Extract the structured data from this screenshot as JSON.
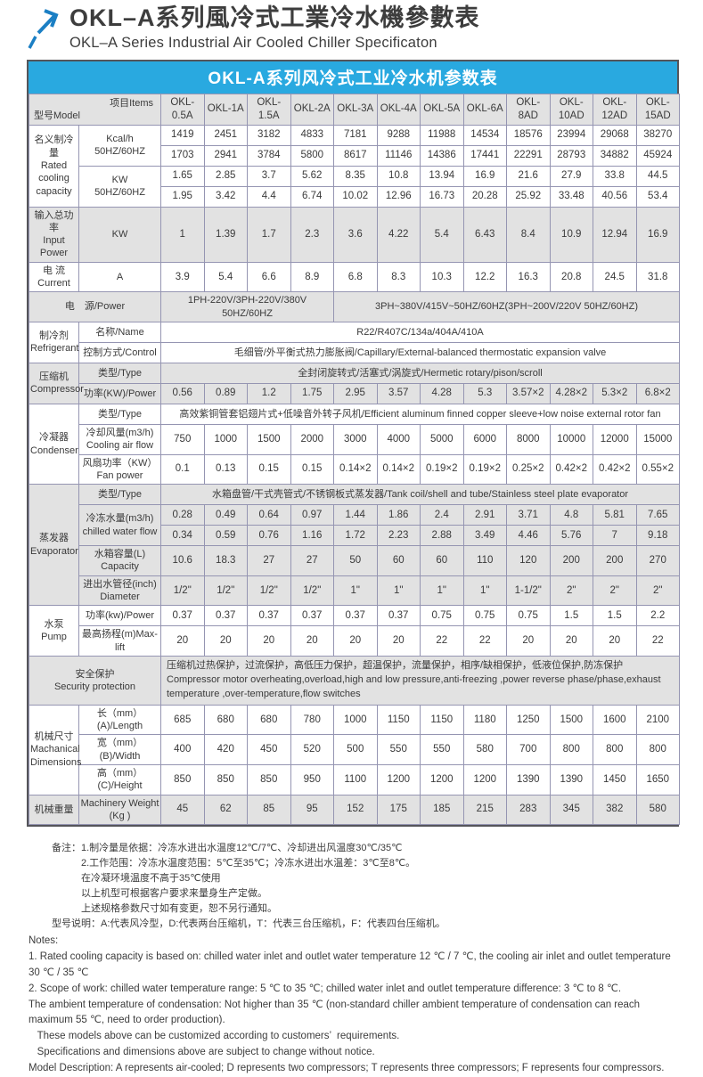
{
  "page": {
    "logo_icon": "arrow-up-right-icon",
    "title_zh": "OKL–A系列風冷式工業冷水機參數表",
    "title_en": "OKL–A Series Industrial Air Cooled Chiller Specificaton",
    "accent_blue": "#29a9e0",
    "logo_blue": "#1b7fc4",
    "shade_gray": "#e2e2e2"
  },
  "table": {
    "title": "OKL-A系列风冷式工业冷水机参数表",
    "header": {
      "model_label": "型号Model",
      "items_label": "项目Items",
      "models": [
        "OKL-0.5A",
        "OKL-1A",
        "OKL-1.5A",
        "OKL-2A",
        "OKL-3A",
        "OKL-4A",
        "OKL-5A",
        "OKL-6A",
        "OKL-8AD",
        "OKL-10AD",
        "OKL-12AD",
        "OKL-15AD"
      ]
    },
    "rows": [
      {
        "shade": false,
        "cells": [
          {
            "t": "名义制冷量\nRated\ncooling\ncapacity",
            "rs": 4,
            "cl": "grp",
            "n": "group-label-rated-cooling-capacity"
          },
          {
            "t": "Kcal/h\n50HZ/60HZ",
            "rs": 2,
            "cl": "item",
            "n": "item-label-kcal"
          },
          "1419",
          "2451",
          "3182",
          "4833",
          "7181",
          "9288",
          "11988",
          "14534",
          "18576",
          "23994",
          "29068",
          "38270"
        ]
      },
      {
        "shade": false,
        "cells": [
          "1703",
          "2941",
          "3784",
          "5800",
          "8617",
          "11146",
          "14386",
          "17441",
          "22291",
          "28793",
          "34882",
          "45924"
        ]
      },
      {
        "shade": false,
        "cells": [
          {
            "t": "KW\n50HZ/60HZ",
            "rs": 2,
            "cl": "item",
            "n": "item-label-kw"
          },
          "1.65",
          "2.85",
          "3.7",
          "5.62",
          "8.35",
          "10.8",
          "13.94",
          "16.9",
          "21.6",
          "27.9",
          "33.8",
          "44.5"
        ]
      },
      {
        "shade": false,
        "cells": [
          "1.95",
          "3.42",
          "4.4",
          "6.74",
          "10.02",
          "12.96",
          "16.73",
          "20.28",
          "25.92",
          "33.48",
          "40.56",
          "53.4"
        ]
      },
      {
        "shade": true,
        "cells": [
          {
            "t": "输入总功率\nInput Power",
            "cl": "grp",
            "n": "group-label-input-power"
          },
          {
            "t": "KW",
            "cl": "item",
            "n": "item-label-kw-unit"
          },
          "1",
          "1.39",
          "1.7",
          "2.3",
          "3.6",
          "4.22",
          "5.4",
          "6.43",
          "8.4",
          "10.9",
          "12.94",
          "16.9"
        ]
      },
      {
        "shade": false,
        "cells": [
          {
            "t": "电 流\nCurrent",
            "cl": "grp",
            "n": "group-label-current"
          },
          {
            "t": "A",
            "cl": "item",
            "n": "item-label-a-unit"
          },
          "3.9",
          "5.4",
          "6.6",
          "8.9",
          "6.8",
          "8.3",
          "10.3",
          "12.2",
          "16.3",
          "20.8",
          "24.5",
          "31.8"
        ]
      },
      {
        "shade": true,
        "cells": [
          {
            "t": "电　源/Power",
            "cs": 2,
            "cl": "grp",
            "n": "group-label-power-supply"
          },
          {
            "t": "1PH-220V/3PH-220V/380V 50HZ/60HZ",
            "cs": 4,
            "cl": "txt",
            "n": "power-supply-single"
          },
          {
            "t": "3PH~380V/415V~50HZ/60HZ(3PH~200V/220V  50HZ/60HZ)",
            "cs": 8,
            "cl": "txt",
            "n": "power-supply-three"
          }
        ]
      },
      {
        "shade": false,
        "cells": [
          {
            "t": "制冷剂\nRefrigerant",
            "rs": 2,
            "cl": "grp",
            "n": "group-label-refrigerant"
          },
          {
            "t": "名称/Name",
            "cl": "item",
            "n": "item-label-name"
          },
          {
            "t": "R22/R407C/134a/404A/410A",
            "cs": 12,
            "cl": "txt",
            "n": "refrigerant-name"
          }
        ]
      },
      {
        "shade": false,
        "cells": [
          {
            "t": "控制方式/Control",
            "cl": "item",
            "n": "item-label-control"
          },
          {
            "t": "毛细管/外平衡式热力膨胀阀/Capillary/External-balanced thermostatic expansion valve",
            "cs": 12,
            "cl": "txt",
            "n": "refrigerant-control"
          }
        ]
      },
      {
        "shade": true,
        "cells": [
          {
            "t": "压缩机\nCompressor",
            "rs": 2,
            "cl": "grp",
            "n": "group-label-compressor"
          },
          {
            "t": "类型/Type",
            "cl": "item",
            "n": "item-label-type"
          },
          {
            "t": "全封闭旋转式/活塞式/涡旋式/Hermetic rotary/pison/scroll",
            "cs": 12,
            "cl": "txt",
            "n": "compressor-type"
          }
        ]
      },
      {
        "shade": true,
        "cells": [
          {
            "t": "功率(KW)/Power",
            "cl": "item",
            "n": "item-label-compressor-power"
          },
          "0.56",
          "0.89",
          "1.2",
          "1.75",
          "2.95",
          "3.57",
          "4.28",
          "5.3",
          "3.57×2",
          "4.28×2",
          "5.3×2",
          "6.8×2"
        ]
      },
      {
        "shade": false,
        "cells": [
          {
            "t": "冷凝器\nCondenser",
            "rs": 3,
            "cl": "grp",
            "n": "group-label-condenser"
          },
          {
            "t": "类型/Type",
            "cl": "item",
            "n": "item-label-type"
          },
          {
            "t": "高效紫铜管套铝翅片式+低噪音外转子风机/Efficient aluminum finned copper sleeve+low noise external rotor fan",
            "cs": 12,
            "cl": "txt",
            "n": "condenser-type"
          }
        ]
      },
      {
        "shade": false,
        "cells": [
          {
            "t": "冷却风量(m3/h)\nCooling air flow",
            "cl": "item",
            "n": "item-label-cooling-air-flow"
          },
          "750",
          "1000",
          "1500",
          "2000",
          "3000",
          "4000",
          "5000",
          "6000",
          "8000",
          "10000",
          "12000",
          "15000"
        ]
      },
      {
        "shade": false,
        "cells": [
          {
            "t": "风扇功率（KW）\nFan power",
            "cl": "item",
            "n": "item-label-fan-power"
          },
          "0.1",
          "0.13",
          "0.15",
          "0.15",
          "0.14×2",
          "0.14×2",
          "0.19×2",
          "0.19×2",
          "0.25×2",
          "0.42×2",
          "0.42×2",
          "0.55×2"
        ]
      },
      {
        "shade": true,
        "cells": [
          {
            "t": "蒸发器\nEvaporator",
            "rs": 5,
            "cl": "grp",
            "n": "group-label-evaporator"
          },
          {
            "t": "类型/Type",
            "cl": "item",
            "n": "item-label-type"
          },
          {
            "t": "水箱盘管/干式壳管式/不锈钢板式蒸发器/Tank coil/shell and tube/Stainless steel plate evaporator",
            "cs": 12,
            "cl": "txt",
            "n": "evaporator-type"
          }
        ]
      },
      {
        "shade": true,
        "cells": [
          {
            "t": "冷冻水量(m3/h)\nchilled water flow",
            "rs": 2,
            "cl": "item",
            "n": "item-label-chilled-water-flow"
          },
          "0.28",
          "0.49",
          "0.64",
          "0.97",
          "1.44",
          "1.86",
          "2.4",
          "2.91",
          "3.71",
          "4.8",
          "5.81",
          "7.65"
        ]
      },
      {
        "shade": true,
        "cells": [
          "0.34",
          "0.59",
          "0.76",
          "1.16",
          "1.72",
          "2.23",
          "2.88",
          "3.49",
          "4.46",
          "5.76",
          "7",
          "9.18"
        ]
      },
      {
        "shade": true,
        "cells": [
          {
            "t": "水箱容量(L)\nCapacity",
            "cl": "item",
            "n": "item-label-tank-capacity"
          },
          "10.6",
          "18.3",
          "27",
          "27",
          "50",
          "60",
          "60",
          "110",
          "120",
          "200",
          "200",
          "270"
        ]
      },
      {
        "shade": true,
        "cells": [
          {
            "t": "进出水管径(inch)\nDiameter",
            "cl": "item",
            "n": "item-label-pipe-diameter"
          },
          "1/2\"",
          "1/2\"",
          "1/2\"",
          "1/2\"",
          "1\"",
          "1\"",
          "1\"",
          "1\"",
          "1-1/2\"",
          "2\"",
          "2\"",
          "2\""
        ]
      },
      {
        "shade": false,
        "cells": [
          {
            "t": "水泵\nPump",
            "rs": 2,
            "cl": "grp",
            "n": "group-label-pump"
          },
          {
            "t": "功率(kw)/Power",
            "cl": "item",
            "n": "item-label-pump-power"
          },
          "0.37",
          "0.37",
          "0.37",
          "0.37",
          "0.37",
          "0.37",
          "0.75",
          "0.75",
          "0.75",
          "1.5",
          "1.5",
          "2.2"
        ]
      },
      {
        "shade": false,
        "cells": [
          {
            "t": "最高扬程(m)Max-lift",
            "cl": "item",
            "n": "item-label-max-lift"
          },
          "20",
          "20",
          "20",
          "20",
          "20",
          "20",
          "22",
          "22",
          "20",
          "20",
          "20",
          "22"
        ]
      },
      {
        "shade": true,
        "cells": [
          {
            "t": "安全保护\nSecurity protection",
            "cs": 2,
            "cl": "grp",
            "n": "group-label-security-protection"
          },
          {
            "t": "压缩机过热保护，过流保护，高低压力保护，超温保护，流量保护，相序/缺相保护，低液位保护,防冻保护\nCompressor motor overheating,overload,high and low pressure,anti-freezing ,power reverse phase/phase,exhaust temperature ,over-temperature,flow switches",
            "cs": 12,
            "cl": "txtl",
            "n": "security-protection-text"
          }
        ]
      },
      {
        "shade": false,
        "cells": [
          {
            "t": "机械尺寸\nMachanical\nDimensions",
            "rs": 3,
            "cl": "grp",
            "n": "group-label-mechanical-dimensions"
          },
          {
            "t": "长（mm）(A)/Length",
            "cl": "item",
            "n": "item-label-length"
          },
          "685",
          "680",
          "680",
          "780",
          "1000",
          "1150",
          "1150",
          "1180",
          "1250",
          "1500",
          "1600",
          "2100"
        ]
      },
      {
        "shade": false,
        "cells": [
          {
            "t": "宽（mm）(B)/Width",
            "cl": "item",
            "n": "item-label-width"
          },
          "400",
          "420",
          "450",
          "520",
          "500",
          "550",
          "550",
          "580",
          "700",
          "800",
          "800",
          "800"
        ]
      },
      {
        "shade": false,
        "cells": [
          {
            "t": "高（mm）(C)/Height",
            "cl": "item",
            "n": "item-label-height"
          },
          "850",
          "850",
          "850",
          "950",
          "1100",
          "1200",
          "1200",
          "1200",
          "1390",
          "1390",
          "1450",
          "1650"
        ]
      },
      {
        "shade": true,
        "cells": [
          {
            "t": "机械重量",
            "cl": "grp",
            "n": "group-label-machinery-weight"
          },
          {
            "t": "Machinery Weight\n(Kg )",
            "cl": "item",
            "n": "item-label-machinery-weight"
          },
          "45",
          "62",
          "85",
          "95",
          "152",
          "175",
          "185",
          "215",
          "283",
          "345",
          "382",
          "580"
        ]
      }
    ]
  },
  "notes_zh": [
    "备注：1.制冷量是依据：冷冻水进出水温度12℃/7℃、冷却进出风温度30℃/35℃",
    "　　　2.工作范围：冷冻水温度范围：5℃至35℃；冷冻水进出水温差：3℃至8℃。",
    "　　　在冷凝环境温度不高于35℃使用",
    "　　　以上机型可根据客户要求来量身生产定做。",
    "　　　上述规格参数尺寸如有变更，恕不另行通知。",
    "型号说明：A:代表风冷型，D:代表两台压缩机，T：代表三台压缩机，F：代表四台压缩机。"
  ],
  "notes_en": [
    "Notes:",
    "1. Rated cooling capacity is based on: chilled water inlet and outlet water temperature 12 ℃ / 7 ℃, the cooling air inlet and outlet temperature 30 ℃ / 35 ℃",
    "2. Scope of work: chilled water temperature range: 5 ℃ to 35 ℃; chilled water inlet and outlet temperature difference: 3 ℃ to 8 ℃.",
    "The ambient temperature of condensation: Not higher than 35 ℃ (non-standard chiller ambient temperature of condensation can reach maximum 55 ℃, need to order production).",
    "   These models above can be customized according to customers’  requirements.",
    "   Specifications and dimensions above are subject to change without notice.",
    "Model Description: A represents air-cooled; D represents two compressors; T represents three compressors; F represents four compressors."
  ]
}
